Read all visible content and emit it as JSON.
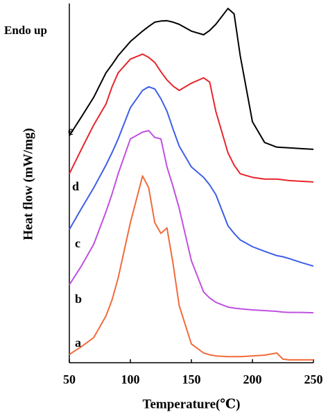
{
  "chart_data": {
    "type": "line",
    "annotation": "Endo up",
    "x_label": "Temperature(℃)",
    "y_label": "Heat flow (mW/mg)",
    "xlim": [
      50,
      250
    ],
    "xticks": [
      50,
      100,
      150,
      200,
      250
    ],
    "ylim": [
      0,
      100
    ],
    "x": [
      50,
      60,
      70,
      80,
      85,
      90,
      100,
      110,
      115,
      120,
      125,
      130,
      135,
      140,
      150,
      160,
      165,
      170,
      180,
      185,
      190,
      200,
      210,
      220,
      225,
      230,
      240,
      250
    ],
    "series": [
      {
        "name": "a",
        "color": "#f26a3a",
        "values": [
          2.3,
          4.5,
          7,
          13,
          17.5,
          23.6,
          39,
          52,
          48.7,
          39,
          36,
          37.5,
          27.5,
          15.9,
          5.2,
          2.7,
          2.2,
          1.9,
          1.7,
          1.7,
          1.7,
          1.9,
          2.1,
          2.7,
          1,
          0.8,
          0.8,
          0.8
        ]
      },
      {
        "name": "b",
        "color": "#c050e0",
        "values": [
          21.7,
          27,
          33,
          42,
          47,
          52.6,
          62.3,
          64.2,
          64.6,
          62.7,
          62.3,
          54.5,
          49,
          43,
          28.4,
          19.7,
          18,
          16.8,
          15.5,
          15.2,
          15,
          14.7,
          14.5,
          14.3,
          14.1,
          14,
          14,
          13.9
        ]
      },
      {
        "name": "c",
        "color": "#3b5ee8",
        "values": [
          37.1,
          43,
          48.7,
          55,
          58.5,
          62.3,
          71,
          75.8,
          76.8,
          76.2,
          73.5,
          70,
          65,
          60.3,
          54.5,
          51.6,
          49.5,
          46.8,
          38.1,
          36,
          34.2,
          32.3,
          31,
          29.8,
          29.5,
          29,
          27.9,
          26.9
        ]
      },
      {
        "name": "d",
        "color": "#e8242a",
        "values": [
          52.6,
          59.5,
          66.2,
          72,
          76.8,
          80.7,
          84.5,
          85.9,
          85,
          83.6,
          81,
          78.7,
          77,
          75.8,
          77.8,
          79.3,
          78.1,
          70,
          58.4,
          55,
          52.6,
          51.6,
          51.1,
          51.1,
          50.9,
          50.7,
          50.5,
          50.3
        ]
      },
      {
        "name": "e",
        "color": "#000000",
        "values": [
          63.2,
          68.5,
          73.9,
          80.7,
          83,
          85.5,
          89.4,
          92.3,
          93.6,
          94.8,
          95.1,
          95.2,
          94.8,
          94.2,
          92.3,
          91.3,
          92.5,
          94.2,
          98.6,
          97.1,
          85.5,
          67.1,
          61.3,
          60,
          59.9,
          59.8,
          59.6,
          59.4
        ]
      }
    ]
  }
}
